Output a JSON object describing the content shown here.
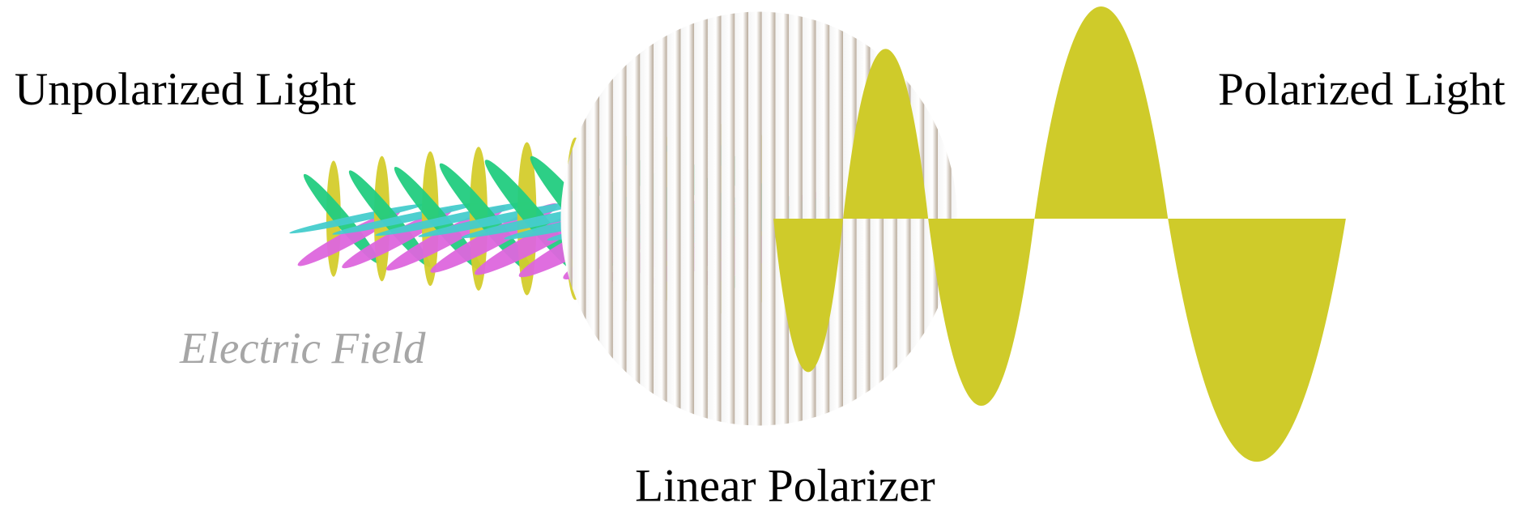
{
  "labels": {
    "unpolarized": "Unpolarized Light",
    "polarized": "Polarized Light",
    "field": "Electric Field",
    "polarizer": "Linear Polarizer"
  }
}
